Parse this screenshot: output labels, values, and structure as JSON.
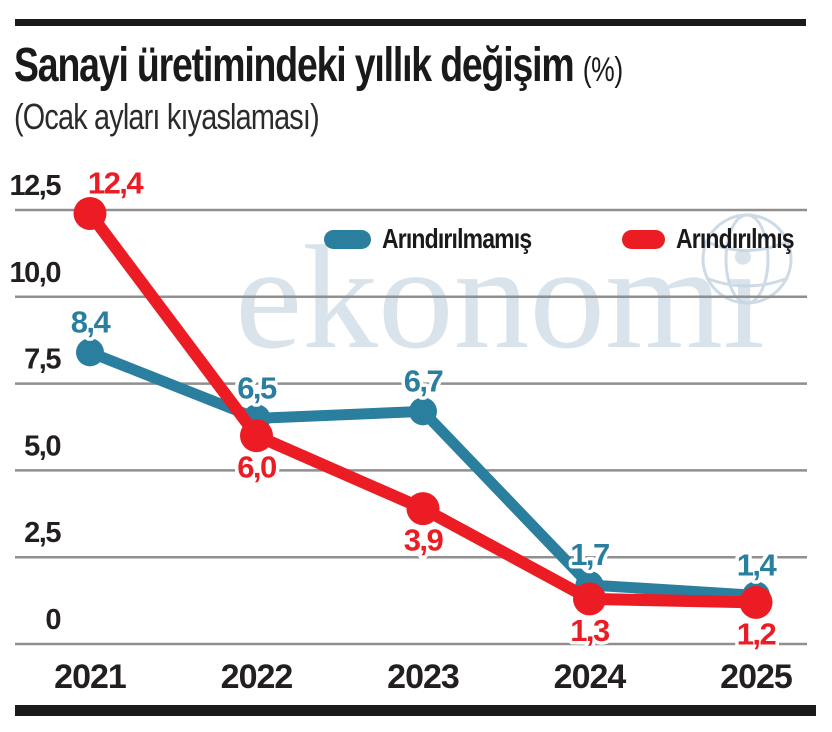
{
  "page": {
    "title": "Sanayi üretimindeki yıllık değişim",
    "title_suffix": "(%)",
    "subtitle": "(Ocak ayları kıyaslaması)"
  },
  "watermark": {
    "text": "ekonomi"
  },
  "legend": [
    {
      "label": "Arındırılmamış",
      "color": "#2b7f9e"
    },
    {
      "label": "Arındırılmış",
      "color": "#ec1c24"
    }
  ],
  "colors": {
    "grid": "#8f8f8f",
    "rule": "#1a1a1a",
    "text": "#231f20",
    "watermark": "#d9e3ec",
    "series_teal": "#2b7f9e",
    "series_red": "#ec1c24"
  },
  "chart_data": {
    "type": "line",
    "title": "Sanayi üretimindeki yıllık değişim (%)",
    "subtitle": "(Ocak ayları kıyaslaması)",
    "categories": [
      "2021",
      "2022",
      "2023",
      "2024",
      "2025"
    ],
    "series": [
      {
        "name": "Arındırılmamış",
        "color": "#2b7f9e",
        "values": [
          8.4,
          6.5,
          6.7,
          1.7,
          1.4
        ],
        "labels": [
          "8,4",
          "6,5",
          "6,7",
          "1,7",
          "1,4"
        ],
        "label_positions": [
          "above",
          "above",
          "above",
          "above",
          "above"
        ]
      },
      {
        "name": "Arındırılmış",
        "color": "#ec1c24",
        "values": [
          12.4,
          6.0,
          3.9,
          1.3,
          1.2
        ],
        "labels": [
          "12,4",
          "6,0",
          "3,9",
          "1,3",
          "1,2"
        ],
        "label_positions": [
          "above",
          "below",
          "below",
          "below",
          "below"
        ]
      }
    ],
    "xlabel": "",
    "ylabel": "",
    "ylim": [
      0,
      12.5
    ],
    "yticks": [
      0,
      2.5,
      5.0,
      7.5,
      10.0,
      12.5
    ],
    "ytick_labels": [
      "0",
      "2,5",
      "5,0",
      "7,5",
      "10,0",
      "12,5"
    ],
    "grid": true,
    "legend_position": "top-inside"
  }
}
